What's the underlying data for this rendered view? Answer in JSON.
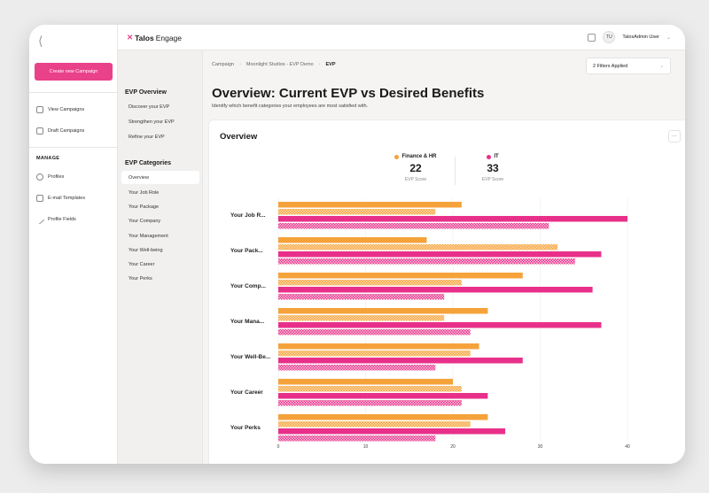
{
  "rail": {
    "create_label": "Create new Campaign",
    "items": [
      {
        "label": "View Campaigns",
        "icon": "campaign-icon"
      },
      {
        "label": "Draft Campaigns",
        "icon": "draft-icon"
      }
    ],
    "manage_heading": "MANAGE",
    "manage_items": [
      {
        "label": "Profiles",
        "icon": "profiles-icon"
      },
      {
        "label": "E-mail Templates",
        "icon": "email-icon"
      },
      {
        "label": "Profile Fields",
        "icon": "edit-icon"
      }
    ]
  },
  "topbar": {
    "logo_prefix": "Talos",
    "logo_suffix": "Engage",
    "avatar_initials": "TU",
    "user_name": "TalosAdmin User"
  },
  "sub": {
    "overview_heading": "EVP Overview",
    "overview_items": [
      "Discover your EVP",
      "Strengthen your EVP",
      "Refine your EVP"
    ],
    "categories_heading": "EVP Categories",
    "category_items": [
      "Overview",
      "Your Job Role",
      "Your Package",
      "Your Company",
      "Your Management",
      "Your Well-being",
      "Your Career",
      "Your Perks"
    ]
  },
  "main": {
    "breadcrumbs": [
      "Campaign",
      "Moonlight Studios - EVP Demo",
      "EVP"
    ],
    "filters_label": "2 Filters Applied",
    "title": "Overview: Current EVP vs Desired Benefits",
    "subtitle": "Identify which benefit categories your employees are most satisfied with.",
    "card_title": "Overview",
    "more_label": "···"
  },
  "legend": [
    {
      "name": "Finance & HR",
      "score": "22",
      "sub": "EVP Score",
      "color": "#f5a23a"
    },
    {
      "name": "IT",
      "score": "33",
      "sub": "EVP Score",
      "color": "#e8308a"
    }
  ],
  "chart_data": {
    "type": "bar",
    "orientation": "horizontal",
    "categories": [
      "Your Job R...",
      "Your Pack...",
      "Your Comp...",
      "Your Mana...",
      "Your Well-Be...",
      "Your Career",
      "Your Perks"
    ],
    "series": [
      {
        "name": "Finance & HR",
        "style": "solid",
        "color": "#f5a23a",
        "values": [
          21,
          17,
          28,
          24,
          23,
          20,
          24
        ]
      },
      {
        "name": "Finance & HR",
        "style": "hatched",
        "color": "#f5a23a",
        "values": [
          18,
          32,
          21,
          19,
          22,
          21,
          22
        ]
      },
      {
        "name": "IT",
        "style": "solid",
        "color": "#e8308a",
        "values": [
          40,
          37,
          36,
          37,
          28,
          24,
          26
        ]
      },
      {
        "name": "IT",
        "style": "hatched",
        "color": "#e8308a",
        "values": [
          31,
          34,
          19,
          22,
          18,
          21,
          18
        ]
      }
    ],
    "xlim": [
      0,
      40
    ],
    "xticks": [
      "0",
      "10",
      "20",
      "30",
      "40"
    ],
    "grid": true
  }
}
